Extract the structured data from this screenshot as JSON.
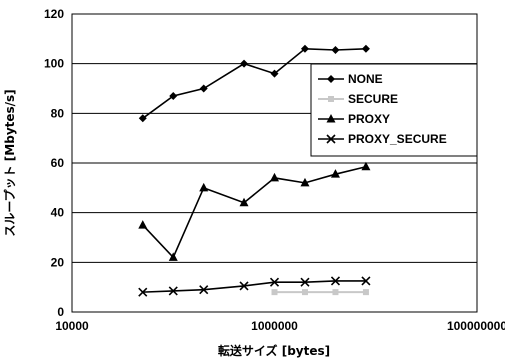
{
  "chart_data": {
    "type": "line",
    "x_scale": "log",
    "xlim": [
      10000,
      100000000
    ],
    "ylim": [
      0,
      120
    ],
    "x_ticks": [
      "10000",
      "1000000",
      "100000000"
    ],
    "y_ticks": [
      "0",
      "20",
      "40",
      "60",
      "80",
      "100",
      "120"
    ],
    "xlabel": "転送サイズ [bytes]",
    "ylabel": "スループット [Mbytes/s]",
    "grid": "horizontal",
    "legend_position": "right",
    "x": [
      50000,
      100000,
      200000,
      500000,
      1000000,
      2000000,
      4000000,
      8000000
    ],
    "series": [
      {
        "name": "NONE",
        "marker": "diamond",
        "color": "#000000",
        "values": [
          78,
          87,
          90,
          100,
          96,
          106,
          105.5,
          106
        ]
      },
      {
        "name": "SECURE",
        "marker": "square",
        "color": "#c8c8c8",
        "values": [
          null,
          null,
          null,
          null,
          8,
          8,
          8,
          8
        ]
      },
      {
        "name": "PROXY",
        "marker": "triangle",
        "color": "#000000",
        "values": [
          35,
          22,
          50,
          44,
          54,
          52,
          55.5,
          58.5
        ]
      },
      {
        "name": "PROXY_SECURE",
        "marker": "x",
        "color": "#000000",
        "values": [
          8,
          8.5,
          9,
          10.5,
          12,
          12,
          12.5,
          12.5
        ]
      }
    ]
  }
}
